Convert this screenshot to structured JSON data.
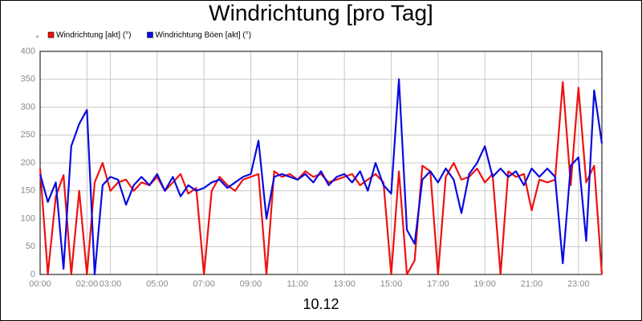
{
  "chart_data": {
    "type": "line",
    "title": "Windrichtung [pro Tag]",
    "xlabel": "10.12",
    "x": [
      0,
      0.33,
      0.67,
      1,
      1.33,
      1.67,
      2,
      2.33,
      2.67,
      3,
      3.33,
      3.67,
      4,
      4.33,
      4.67,
      5,
      5.33,
      5.67,
      6,
      6.33,
      6.67,
      7,
      7.33,
      7.67,
      8,
      8.33,
      8.67,
      9,
      9.33,
      9.67,
      10,
      10.33,
      10.67,
      11,
      11.33,
      11.67,
      12,
      12.33,
      12.67,
      13,
      13.33,
      13.67,
      14,
      14.33,
      14.67,
      15,
      15.33,
      15.67,
      16,
      16.33,
      16.67,
      17,
      17.33,
      17.67,
      18,
      18.33,
      18.67,
      19,
      19.33,
      19.67,
      20,
      20.33,
      20.67,
      21,
      21.33,
      21.67,
      22,
      22.33,
      22.67,
      23,
      23.33,
      23.67,
      24
    ],
    "series": [
      {
        "name": "Windrichtung [akt] (°)",
        "color": "#ee1111",
        "values": [
          190,
          0,
          140,
          178,
          0,
          150,
          0,
          165,
          200,
          150,
          165,
          170,
          150,
          165,
          160,
          175,
          150,
          165,
          180,
          145,
          155,
          0,
          150,
          175,
          160,
          150,
          170,
          175,
          180,
          0,
          185,
          175,
          180,
          170,
          185,
          175,
          180,
          165,
          170,
          175,
          180,
          160,
          170,
          180,
          165,
          0,
          185,
          0,
          25,
          195,
          185,
          0,
          175,
          200,
          170,
          175,
          190,
          165,
          180,
          0,
          185,
          175,
          180,
          115,
          170,
          165,
          170,
          345,
          160,
          335,
          165,
          195,
          0
        ]
      },
      {
        "name": "Windrichtung Böen [akt] (°)",
        "color": "#0a0ae0",
        "values": [
          180,
          130,
          165,
          10,
          230,
          270,
          295,
          0,
          160,
          175,
          170,
          125,
          160,
          175,
          160,
          180,
          150,
          175,
          140,
          160,
          150,
          155,
          165,
          170,
          155,
          165,
          175,
          180,
          240,
          100,
          175,
          180,
          175,
          170,
          180,
          165,
          185,
          160,
          175,
          180,
          165,
          185,
          150,
          200,
          160,
          145,
          350,
          80,
          55,
          170,
          185,
          165,
          190,
          170,
          110,
          180,
          200,
          230,
          175,
          190,
          175,
          185,
          160,
          190,
          175,
          190,
          175,
          20,
          195,
          210,
          60,
          330,
          235
        ]
      }
    ],
    "xlim": [
      0,
      24
    ],
    "xticks": [
      {
        "value": 0,
        "label": "00:00"
      },
      {
        "value": 2,
        "label": "02:00"
      },
      {
        "value": 3,
        "label": "03:00"
      },
      {
        "value": 5,
        "label": "05:00"
      },
      {
        "value": 7,
        "label": "07:00"
      },
      {
        "value": 9,
        "label": "09:00"
      },
      {
        "value": 11,
        "label": "11:00"
      },
      {
        "value": 13,
        "label": "13:00"
      },
      {
        "value": 15,
        "label": "15:00"
      },
      {
        "value": 17,
        "label": "17:00"
      },
      {
        "value": 19,
        "label": "19:00"
      },
      {
        "value": 21,
        "label": "21:00"
      },
      {
        "value": 23,
        "label": "23:00"
      }
    ],
    "ylim": [
      0,
      400
    ],
    "yticks": [
      0,
      50,
      100,
      150,
      200,
      250,
      300,
      350,
      400
    ],
    "grid": true
  }
}
